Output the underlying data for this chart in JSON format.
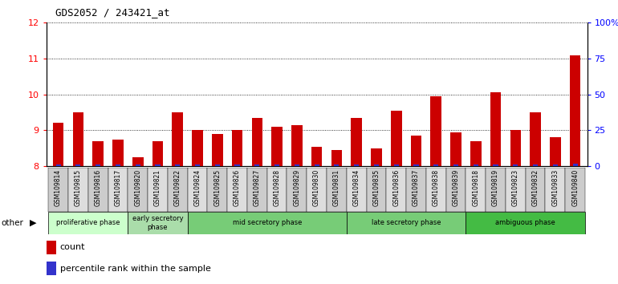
{
  "title": "GDS2052 / 243421_at",
  "samples": [
    "GSM109814",
    "GSM109815",
    "GSM109816",
    "GSM109817",
    "GSM109820",
    "GSM109821",
    "GSM109822",
    "GSM109824",
    "GSM109825",
    "GSM109826",
    "GSM109827",
    "GSM109828",
    "GSM109829",
    "GSM109830",
    "GSM109831",
    "GSM109834",
    "GSM109835",
    "GSM109836",
    "GSM109837",
    "GSM109838",
    "GSM109839",
    "GSM109818",
    "GSM109819",
    "GSM109823",
    "GSM109832",
    "GSM109833",
    "GSM109840"
  ],
  "count_values": [
    9.2,
    9.5,
    8.7,
    8.75,
    8.25,
    8.7,
    9.5,
    9.0,
    8.9,
    9.0,
    9.35,
    9.1,
    9.15,
    8.55,
    8.45,
    9.35,
    8.5,
    9.55,
    8.85,
    9.95,
    8.95,
    8.7,
    10.05,
    9.0,
    9.5,
    8.8,
    11.1
  ],
  "pct_values": [
    1,
    1,
    1,
    1,
    1,
    1,
    1,
    1,
    1,
    1,
    1,
    1,
    1,
    1,
    1,
    1,
    1,
    1,
    1,
    1,
    1,
    1,
    1,
    1,
    1,
    1,
    2
  ],
  "ylim_left": [
    8,
    12
  ],
  "ylim_right": [
    0,
    100
  ],
  "yticks_left": [
    8,
    9,
    10,
    11,
    12
  ],
  "yticks_right": [
    0,
    25,
    50,
    75,
    100
  ],
  "ytick_labels_right": [
    "0",
    "25",
    "50",
    "75",
    "100%"
  ],
  "bar_color_count": "#cc0000",
  "bar_color_percentile": "#3333cc",
  "phases": [
    {
      "label": "proliferative phase",
      "start": 0,
      "end": 4,
      "color": "#ccffcc"
    },
    {
      "label": "early secretory\nphase",
      "start": 4,
      "end": 7,
      "color": "#aaddaa"
    },
    {
      "label": "mid secretory phase",
      "start": 7,
      "end": 15,
      "color": "#77cc77"
    },
    {
      "label": "late secretory phase",
      "start": 15,
      "end": 21,
      "color": "#77cc77"
    },
    {
      "label": "ambiguous phase",
      "start": 21,
      "end": 27,
      "color": "#44bb44"
    }
  ],
  "background_color": "#ffffff"
}
